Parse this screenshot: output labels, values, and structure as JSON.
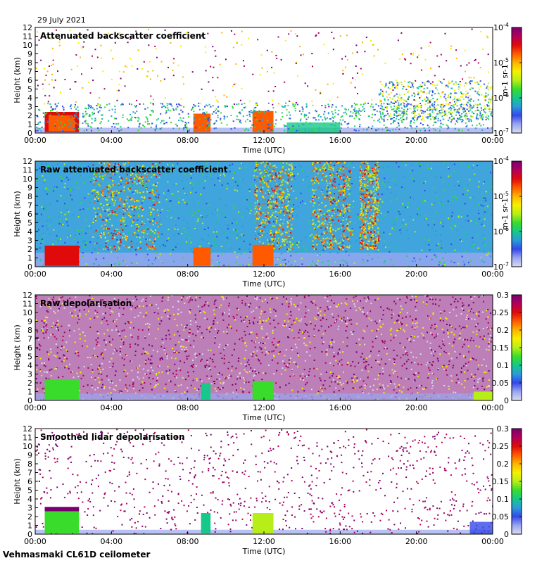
{
  "header": {
    "date": "29 July 2021"
  },
  "footer": {
    "instrument": "Vehmasmaki CL61D ceilometer"
  },
  "colors": {
    "colormap": [
      "#d8dcf0",
      "#9aa6f0",
      "#3348e8",
      "#2a9bd8",
      "#16c88a",
      "#3adc2c",
      "#b8ee18",
      "#f6f000",
      "#ffb400",
      "#ff5a00",
      "#e00a0a",
      "#b0005a",
      "#7a0070"
    ]
  },
  "chart_data": [
    {
      "type": "heatmap",
      "title": "Attenuated backscatter coefficient",
      "xlabel": "Time (UTC)",
      "ylabel": "Height (km)",
      "x_ticks": [
        "00:00",
        "04:00",
        "08:00",
        "12:00",
        "16:00",
        "20:00",
        "00:00"
      ],
      "xlim": [
        0,
        24
      ],
      "ylim": [
        0,
        12
      ],
      "y_ticks": [
        0,
        1,
        2,
        3,
        4,
        5,
        6,
        7,
        8,
        9,
        10,
        11,
        12
      ],
      "colorbar": {
        "scale": "log",
        "range": [
          1e-07,
          0.0001
        ],
        "tick_labels": [
          "10-7",
          "10-6",
          "10-5",
          "10-4"
        ],
        "unit": "m-1 sr-1"
      }
    },
    {
      "type": "heatmap",
      "title": "Raw attenuated backscatter coefficient",
      "xlabel": "Time (UTC)",
      "ylabel": "Height (km)",
      "x_ticks": [
        "00:00",
        "04:00",
        "08:00",
        "12:00",
        "16:00",
        "20:00",
        "00:00"
      ],
      "xlim": [
        0,
        24
      ],
      "ylim": [
        0,
        12
      ],
      "y_ticks": [
        0,
        1,
        2,
        3,
        4,
        5,
        6,
        7,
        8,
        9,
        10,
        11,
        12
      ],
      "colorbar": {
        "scale": "log",
        "range": [
          1e-07,
          0.0001
        ],
        "tick_labels": [
          "10-7",
          "10-6",
          "10-5",
          "10-4"
        ],
        "unit": "m-1 sr-1"
      }
    },
    {
      "type": "heatmap",
      "title": "Raw depolarisation",
      "xlabel": "Time (UTC)",
      "ylabel": "Height (km)",
      "x_ticks": [
        "00:00",
        "04:00",
        "08:00",
        "12:00",
        "16:00",
        "20:00",
        "00:00"
      ],
      "xlim": [
        0,
        24
      ],
      "ylim": [
        0,
        12
      ],
      "y_ticks": [
        0,
        1,
        2,
        3,
        4,
        5,
        6,
        7,
        8,
        9,
        10,
        11,
        12
      ],
      "colorbar": {
        "scale": "linear",
        "range": [
          0,
          0.3
        ],
        "tick_labels": [
          "0",
          "0.05",
          "0.1",
          "0.15",
          "0.2",
          "0.25",
          "0.3"
        ],
        "unit": ""
      }
    },
    {
      "type": "heatmap",
      "title": "Smoothed lidar depolarisation",
      "xlabel": "Time (UTC)",
      "ylabel": "Height (km)",
      "x_ticks": [
        "00:00",
        "04:00",
        "08:00",
        "12:00",
        "16:00",
        "20:00",
        "00:00"
      ],
      "xlim": [
        0,
        24
      ],
      "ylim": [
        0,
        12
      ],
      "y_ticks": [
        0,
        1,
        2,
        3,
        4,
        5,
        6,
        7,
        8,
        9,
        10,
        11,
        12
      ],
      "colorbar": {
        "scale": "linear",
        "range": [
          0,
          0.3
        ],
        "tick_labels": [
          "0",
          "0.05",
          "0.1",
          "0.15",
          "0.2",
          "0.25",
          "0.3"
        ],
        "unit": ""
      }
    }
  ]
}
